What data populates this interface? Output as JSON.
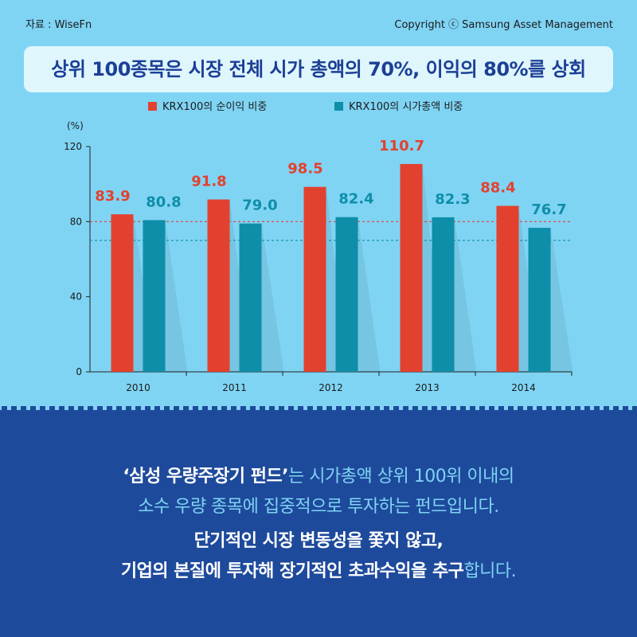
{
  "header": {
    "source": "자료 : WiseFn",
    "copyright": "Copyright ⓒ Samsung Asset Management"
  },
  "title": "상위 100종목은 시장 전체 시가 총액의 70%, 이익의 80%를 상회",
  "colors": {
    "background": "#7fd4f4",
    "title_text": "#1c3f96",
    "net_income": "#e3412f",
    "market_cap": "#0e8ea8",
    "bottom_panel": "#1e4a9c",
    "highlight_text": "#ffffff",
    "normal_text": "#7fd4f4"
  },
  "chart_data": {
    "type": "bar",
    "categories": [
      "2010",
      "2011",
      "2012",
      "2013",
      "2014"
    ],
    "series": [
      {
        "name": "KRX100의 순이익 비중",
        "values": [
          83.9,
          91.8,
          98.5,
          110.7,
          88.4
        ],
        "color": "#e3412f"
      },
      {
        "name": "KRX100의 시가총액 비중",
        "values": [
          80.8,
          79.0,
          82.4,
          82.3,
          76.7
        ],
        "color": "#0e8ea8"
      }
    ],
    "ylabel": "(%)",
    "ylim": [
      0,
      120
    ],
    "yticks": [
      0,
      40,
      80,
      120
    ],
    "reference_lines": [
      {
        "value": 80,
        "color": "#e3412f"
      },
      {
        "value": 70,
        "color": "#0e8ea8"
      }
    ],
    "legend_position": "top",
    "grid": false
  },
  "message": {
    "line1": [
      {
        "text": "‘삼성 우량주장기 펀드’",
        "style": "hl"
      },
      {
        "text": "는 시가총액 상위 100위 이내의",
        "style": "nm"
      }
    ],
    "line2": [
      {
        "text": "소수 우량 종목에 집중적으로 투자하는 펀드입니다.",
        "style": "nm"
      }
    ],
    "line3": [
      {
        "text": "단기적인 시장 변동성을 쫓지 않고,",
        "style": "hl"
      }
    ],
    "line4": [
      {
        "text": "기업의 본질에 투자해 장기적인 초과수익을 추구",
        "style": "hl"
      },
      {
        "text": "합니다.",
        "style": "nm"
      }
    ]
  }
}
